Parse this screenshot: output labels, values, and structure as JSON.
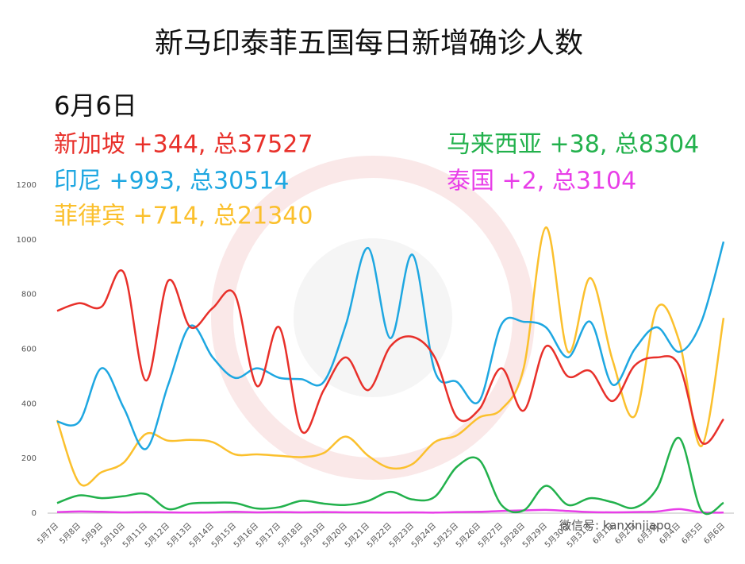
{
  "chart_data": {
    "type": "line",
    "title": "新马印泰菲五国每日新增确诊人数",
    "subtitle": "6月6日",
    "annotations": [
      {
        "text": "新加坡 +344, 总37527",
        "color": "#e8302a"
      },
      {
        "text": "印尼 +993, 总30514",
        "color": "#1ea7e1"
      },
      {
        "text": "菲律宾 +714, 总21340",
        "color": "#fbc02d"
      },
      {
        "text": "马来西亚 +38, 总8304",
        "color": "#22b14c"
      },
      {
        "text": "泰国 +2, 总3104",
        "color": "#e83ee8"
      }
    ],
    "watermark": "微信号: kanxinjiapo",
    "categories": [
      "5月7日",
      "5月8日",
      "5月9日",
      "5月10日",
      "5月11日",
      "5月12日",
      "5月13日",
      "5月14日",
      "5月15日",
      "5月16日",
      "5月17日",
      "5月18日",
      "5月19日",
      "5月20日",
      "5月21日",
      "5月22日",
      "5月23日",
      "5月24日",
      "5月25日",
      "5月26日",
      "5月27日",
      "5月28日",
      "5月29日",
      "5月30日",
      "5月31日",
      "6月1日",
      "6月2日",
      "6月3日",
      "6月4日",
      "6月5日",
      "6月6日"
    ],
    "series": [
      {
        "name": "新加坡",
        "color": "#e8302a",
        "values": [
          740,
          768,
          755,
          880,
          485,
          850,
          680,
          750,
          800,
          465,
          680,
          300,
          450,
          570,
          450,
          610,
          645,
          570,
          350,
          380,
          530,
          375,
          610,
          500,
          520,
          410,
          540,
          570,
          540,
          260,
          344
        ]
      },
      {
        "name": "印尼",
        "color": "#1ea7e1",
        "values": [
          335,
          335,
          530,
          385,
          235,
          470,
          685,
          570,
          495,
          530,
          495,
          490,
          480,
          690,
          970,
          640,
          945,
          520,
          480,
          410,
          690,
          700,
          680,
          570,
          700,
          470,
          600,
          680,
          590,
          700,
          993
        ]
      },
      {
        "name": "菲律宾",
        "color": "#fbc02d",
        "values": [
          340,
          110,
          150,
          185,
          290,
          265,
          268,
          260,
          215,
          215,
          210,
          205,
          220,
          280,
          210,
          165,
          180,
          260,
          285,
          350,
          380,
          530,
          1045,
          590,
          860,
          560,
          355,
          750,
          630,
          245,
          714
        ]
      },
      {
        "name": "马来西亚",
        "color": "#22b14c",
        "values": [
          37,
          65,
          55,
          62,
          70,
          15,
          35,
          38,
          37,
          17,
          22,
          45,
          35,
          30,
          45,
          78,
          50,
          60,
          170,
          195,
          30,
          10,
          100,
          30,
          55,
          40,
          20,
          90,
          275,
          10,
          38
        ]
      },
      {
        "name": "泰国",
        "color": "#e83ee8",
        "values": [
          4,
          6,
          5,
          3,
          4,
          3,
          2,
          3,
          5,
          3,
          4,
          3,
          4,
          3,
          3,
          2,
          3,
          2,
          4,
          5,
          8,
          10,
          12,
          8,
          4,
          3,
          4,
          6,
          15,
          3,
          2
        ]
      }
    ],
    "ylim": [
      0,
      1200
    ],
    "yticks": [
      0,
      200,
      400,
      600,
      800,
      1000,
      1200
    ],
    "grid": false
  }
}
